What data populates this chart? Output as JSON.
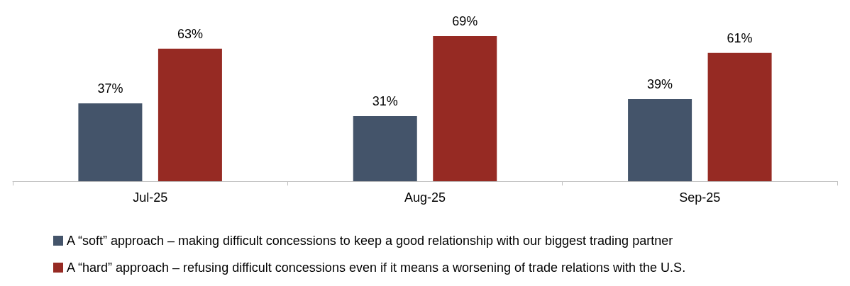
{
  "chart_data": {
    "type": "bar",
    "categories": [
      "Jul-25",
      "Aug-25",
      "Sep-25"
    ],
    "series": [
      {
        "name": "A “soft” approach – making difficult concessions to keep a good relationship with our biggest trading partner",
        "color": "#44546a",
        "values": [
          37,
          31,
          39
        ],
        "value_labels": [
          "37%",
          "31%",
          "39%"
        ]
      },
      {
        "name": "A “hard” approach – refusing difficult concessions even if it means a worsening of trade relations with the U.S.",
        "color": "#962a23",
        "values": [
          63,
          69,
          61
        ],
        "value_labels": [
          "63%",
          "69%",
          "61%"
        ]
      }
    ],
    "legend": "bottom"
  }
}
